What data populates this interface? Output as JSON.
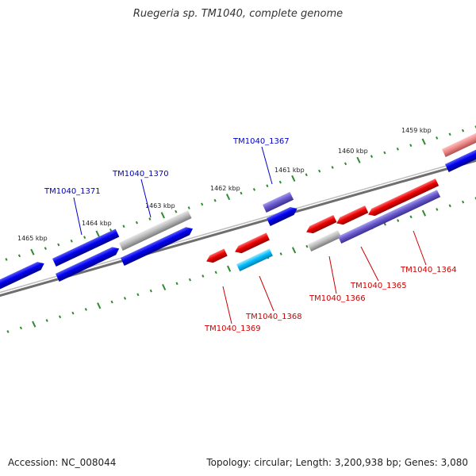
{
  "title": "Ruegeria sp. TM1040, complete genome",
  "footer": {
    "accession": "Accession: NC_008044",
    "summary": "Topology: circular; Length: 3,200,938 bp; Genes: 3,080"
  },
  "scale_labels": [
    "1465 kbp",
    "1464 kbp",
    "1463 kbp",
    "1462 kbp",
    "1461 kbp",
    "1460 kbp",
    "1459 kbp"
  ],
  "gene_labels_upper": [
    "TM1040_1371",
    "TM1040_1370",
    "TM1040_1367"
  ],
  "gene_labels_lower": [
    "TM1040_1369",
    "TM1040_1368",
    "TM1040_1366",
    "TM1040_1365",
    "TM1040_1364"
  ],
  "colors": {
    "upper_label": "#0000cc",
    "lower_label": "#cc0000",
    "backbone": "#808080",
    "tick": "#2e8b2e",
    "gene_blue": "#0000ee",
    "gene_red": "#ee0000",
    "gene_purple": "#6a5acd",
    "gene_gray": "#b0b0b0",
    "gene_cyan": "#00bfff",
    "gene_pink": "#e88080"
  }
}
